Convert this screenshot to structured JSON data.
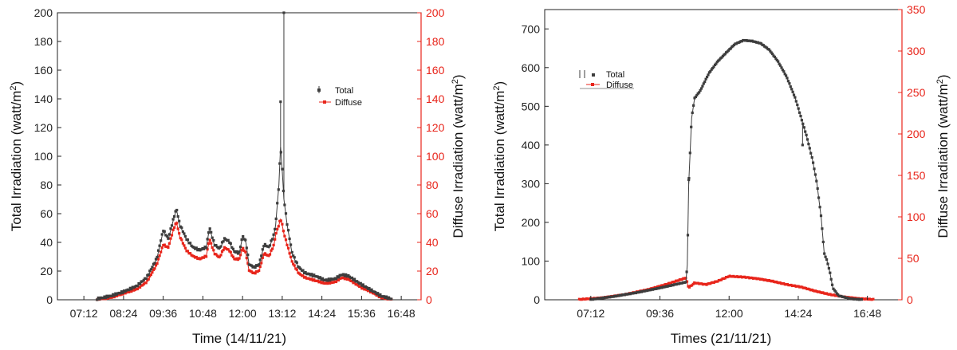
{
  "chart_data": [
    {
      "type": "line",
      "xlabel": "Time (14/11/21)",
      "ylabel_left": "Total Irradiation (watt/m2)",
      "ylabel_right": "Diffuse Irradiation (watt/m2)",
      "ylim_left": [
        0,
        200
      ],
      "ylim_right": [
        0,
        200
      ],
      "yticks_left": [
        "0",
        "20",
        "40",
        "60",
        "80",
        "100",
        "120",
        "140",
        "160",
        "180",
        "200"
      ],
      "yticks_right": [
        "0",
        "20",
        "40",
        "60",
        "80",
        "100",
        "120",
        "140",
        "160",
        "180",
        "200"
      ],
      "xticks": [
        "07:12",
        "08:24",
        "09:36",
        "10:48",
        "12:00",
        "13:12",
        "14:24",
        "15:36",
        "16:48"
      ],
      "x_unit": "hours",
      "xlim": [
        6.4,
        17.4
      ],
      "legend_placement": "upper-right",
      "series": [
        {
          "name": "Total",
          "color": "#3d3d3d",
          "points": [
            [
              7.6,
              0
            ],
            [
              8.0,
              2
            ],
            [
              8.4,
              5
            ],
            [
              8.8,
              9
            ],
            [
              9.1,
              15
            ],
            [
              9.4,
              28
            ],
            [
              9.6,
              48
            ],
            [
              9.75,
              42
            ],
            [
              9.9,
              55
            ],
            [
              10.0,
              63
            ],
            [
              10.1,
              52
            ],
            [
              10.3,
              42
            ],
            [
              10.5,
              36
            ],
            [
              10.7,
              34
            ],
            [
              10.9,
              36
            ],
            [
              11.0,
              50
            ],
            [
              11.15,
              38
            ],
            [
              11.3,
              35
            ],
            [
              11.45,
              42
            ],
            [
              11.6,
              40
            ],
            [
              11.75,
              33
            ],
            [
              11.9,
              32
            ],
            [
              12.0,
              44
            ],
            [
              12.1,
              40
            ],
            [
              12.2,
              24
            ],
            [
              12.35,
              22
            ],
            [
              12.5,
              24
            ],
            [
              12.65,
              38
            ],
            [
              12.8,
              36
            ],
            [
              12.95,
              45
            ],
            [
              13.0,
              52
            ],
            [
              13.1,
              80
            ],
            [
              13.15,
              107
            ],
            [
              13.2,
              90
            ],
            [
              13.25,
              70
            ],
            [
              13.35,
              52
            ],
            [
              13.5,
              32
            ],
            [
              13.7,
              22
            ],
            [
              13.9,
              18
            ],
            [
              14.2,
              16
            ],
            [
              14.5,
              13
            ],
            [
              14.8,
              14
            ],
            [
              15.0,
              17
            ],
            [
              15.2,
              16
            ],
            [
              15.4,
              13
            ],
            [
              15.6,
              10
            ],
            [
              15.9,
              6
            ],
            [
              16.2,
              2
            ],
            [
              16.5,
              0
            ]
          ]
        },
        {
          "name": "Diffuse",
          "color": "#e8251b",
          "points": [
            [
              7.6,
              0
            ],
            [
              8.0,
              1
            ],
            [
              8.4,
              4
            ],
            [
              8.8,
              7
            ],
            [
              9.1,
              12
            ],
            [
              9.4,
              24
            ],
            [
              9.6,
              38
            ],
            [
              9.75,
              36
            ],
            [
              9.9,
              48
            ],
            [
              10.0,
              54
            ],
            [
              10.1,
              44
            ],
            [
              10.3,
              34
            ],
            [
              10.5,
              30
            ],
            [
              10.7,
              28
            ],
            [
              10.9,
              30
            ],
            [
              11.0,
              42
            ],
            [
              11.15,
              32
            ],
            [
              11.3,
              29
            ],
            [
              11.45,
              36
            ],
            [
              11.6,
              34
            ],
            [
              11.75,
              28
            ],
            [
              11.9,
              28
            ],
            [
              12.0,
              36
            ],
            [
              12.1,
              32
            ],
            [
              12.2,
              20
            ],
            [
              12.35,
              18
            ],
            [
              12.5,
              20
            ],
            [
              12.65,
              32
            ],
            [
              12.8,
              30
            ],
            [
              12.95,
              38
            ],
            [
              13.0,
              45
            ],
            [
              13.1,
              52
            ],
            [
              13.15,
              56
            ],
            [
              13.2,
              52
            ],
            [
              13.25,
              46
            ],
            [
              13.35,
              38
            ],
            [
              13.5,
              26
            ],
            [
              13.7,
              18
            ],
            [
              13.9,
              15
            ],
            [
              14.2,
              13
            ],
            [
              14.5,
              11
            ],
            [
              14.8,
              12
            ],
            [
              15.0,
              15
            ],
            [
              15.2,
              14
            ],
            [
              15.4,
              11
            ],
            [
              15.6,
              8
            ],
            [
              15.9,
              5
            ],
            [
              16.2,
              1
            ],
            [
              16.5,
              0
            ]
          ]
        }
      ],
      "spikes_total": [
        [
          13.15,
          138
        ],
        [
          13.25,
          200
        ]
      ]
    },
    {
      "type": "line",
      "xlabel": "Times (21/11/21)",
      "ylabel_left": "Total Irradiation (watt/m2)",
      "ylabel_right": "Diffuse Irradiation (watt/m2)",
      "ylim_left": [
        0,
        750
      ],
      "ylim_right": [
        0,
        350
      ],
      "yticks_left": [
        "0",
        "100",
        "200",
        "300",
        "400",
        "500",
        "600",
        "700"
      ],
      "yticks_right": [
        "0",
        "50",
        "100",
        "150",
        "200",
        "250",
        "300",
        "350"
      ],
      "xticks": [
        "07:12",
        "09:36",
        "12:00",
        "14:24",
        "16:48"
      ],
      "x_unit": "hours",
      "xlim": [
        5.6,
        18.0
      ],
      "legend_placement": "upper-left",
      "series": [
        {
          "name": "Total",
          "color": "#3d3d3d",
          "points": [
            [
              7.2,
              0
            ],
            [
              8.0,
              8
            ],
            [
              8.8,
              18
            ],
            [
              9.6,
              30
            ],
            [
              10.2,
              40
            ],
            [
              10.5,
              45
            ],
            [
              10.55,
              90
            ],
            [
              10.6,
              300
            ],
            [
              10.7,
              470
            ],
            [
              10.8,
              520
            ],
            [
              11.0,
              540
            ],
            [
              11.3,
              585
            ],
            [
              11.6,
              615
            ],
            [
              11.9,
              638
            ],
            [
              12.2,
              660
            ],
            [
              12.5,
              670
            ],
            [
              12.8,
              668
            ],
            [
              13.1,
              662
            ],
            [
              13.4,
              645
            ],
            [
              13.7,
              615
            ],
            [
              14.0,
              575
            ],
            [
              14.3,
              520
            ],
            [
              14.5,
              470
            ],
            [
              14.7,
              420
            ],
            [
              14.9,
              360
            ],
            [
              15.05,
              300
            ],
            [
              15.2,
              210
            ],
            [
              15.3,
              120
            ],
            [
              15.4,
              100
            ],
            [
              15.5,
              70
            ],
            [
              15.6,
              30
            ],
            [
              15.8,
              10
            ],
            [
              16.2,
              2
            ],
            [
              16.6,
              0
            ]
          ]
        },
        {
          "name": "Diffuse",
          "color": "#e8251b",
          "points": [
            [
              6.8,
              0
            ],
            [
              7.6,
              2
            ],
            [
              8.4,
              6
            ],
            [
              9.2,
              12
            ],
            [
              9.8,
              18
            ],
            [
              10.5,
              26
            ],
            [
              10.6,
              14
            ],
            [
              10.8,
              20
            ],
            [
              11.2,
              18
            ],
            [
              11.6,
              22
            ],
            [
              12.0,
              28
            ],
            [
              12.5,
              27
            ],
            [
              13.0,
              25
            ],
            [
              13.5,
              22
            ],
            [
              14.0,
              18
            ],
            [
              14.5,
              15
            ],
            [
              15.0,
              10
            ],
            [
              15.5,
              6
            ],
            [
              16.0,
              3
            ],
            [
              16.5,
              1
            ],
            [
              17.0,
              0
            ]
          ]
        }
      ],
      "spikes_total": [
        [
          10.6,
          310
        ],
        [
          14.55,
          400
        ]
      ]
    }
  ],
  "legend_labels": {
    "total": "Total",
    "diffuse": "Diffuse"
  }
}
